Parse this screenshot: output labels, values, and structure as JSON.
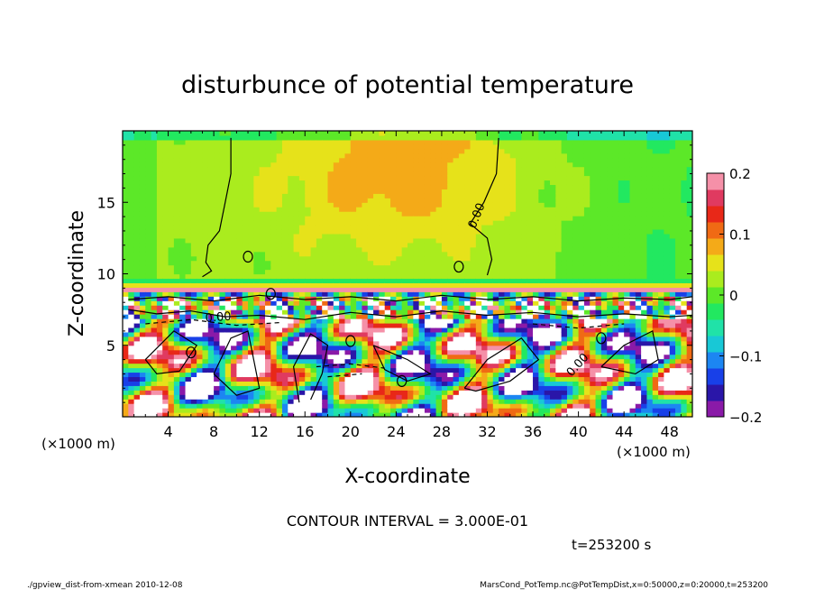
{
  "chart_data": {
    "type": "heatmap",
    "title": "disturbunce of potential temperature",
    "xlabel": "X-coordinate",
    "ylabel": "Z-coordinate",
    "x_unit": "(×1000 m)",
    "y_unit": "(×1000 m)",
    "xlim": [
      0,
      50
    ],
    "ylim": [
      0,
      20
    ],
    "xticks": [
      4,
      8,
      12,
      16,
      20,
      24,
      28,
      32,
      36,
      40,
      44,
      48
    ],
    "yticks": [
      5,
      10,
      15
    ],
    "colorbar": {
      "ticks": [
        0.2,
        0.1,
        0,
        -0.1,
        -0.2
      ],
      "tick_labels": [
        "0.2",
        "0.1",
        "0",
        "−0.1",
        "−0.2"
      ],
      "range": [
        -0.2,
        0.2
      ]
    },
    "contour_labels": [
      "0.00"
    ],
    "contour_interval_text": "CONTOUR INTERVAL = 3.000E-01",
    "time_text": "t=253200 s",
    "footer_left": "./gpview_dist-from-xmean 2010-12-08",
    "footer_right": "MarsCond_PotTemp.nc@PotTempDist,x=0:50000,z=0:20000,t=253200",
    "colormap": [
      "#8a1aa8",
      "#2a16a8",
      "#1840e8",
      "#1c86f2",
      "#18c8d6",
      "#20e2a8",
      "#22e860",
      "#5ce828",
      "#aaec1e",
      "#e6e21a",
      "#f4aa18",
      "#f06a14",
      "#e82818",
      "#e03a60",
      "#f590a8"
    ]
  }
}
